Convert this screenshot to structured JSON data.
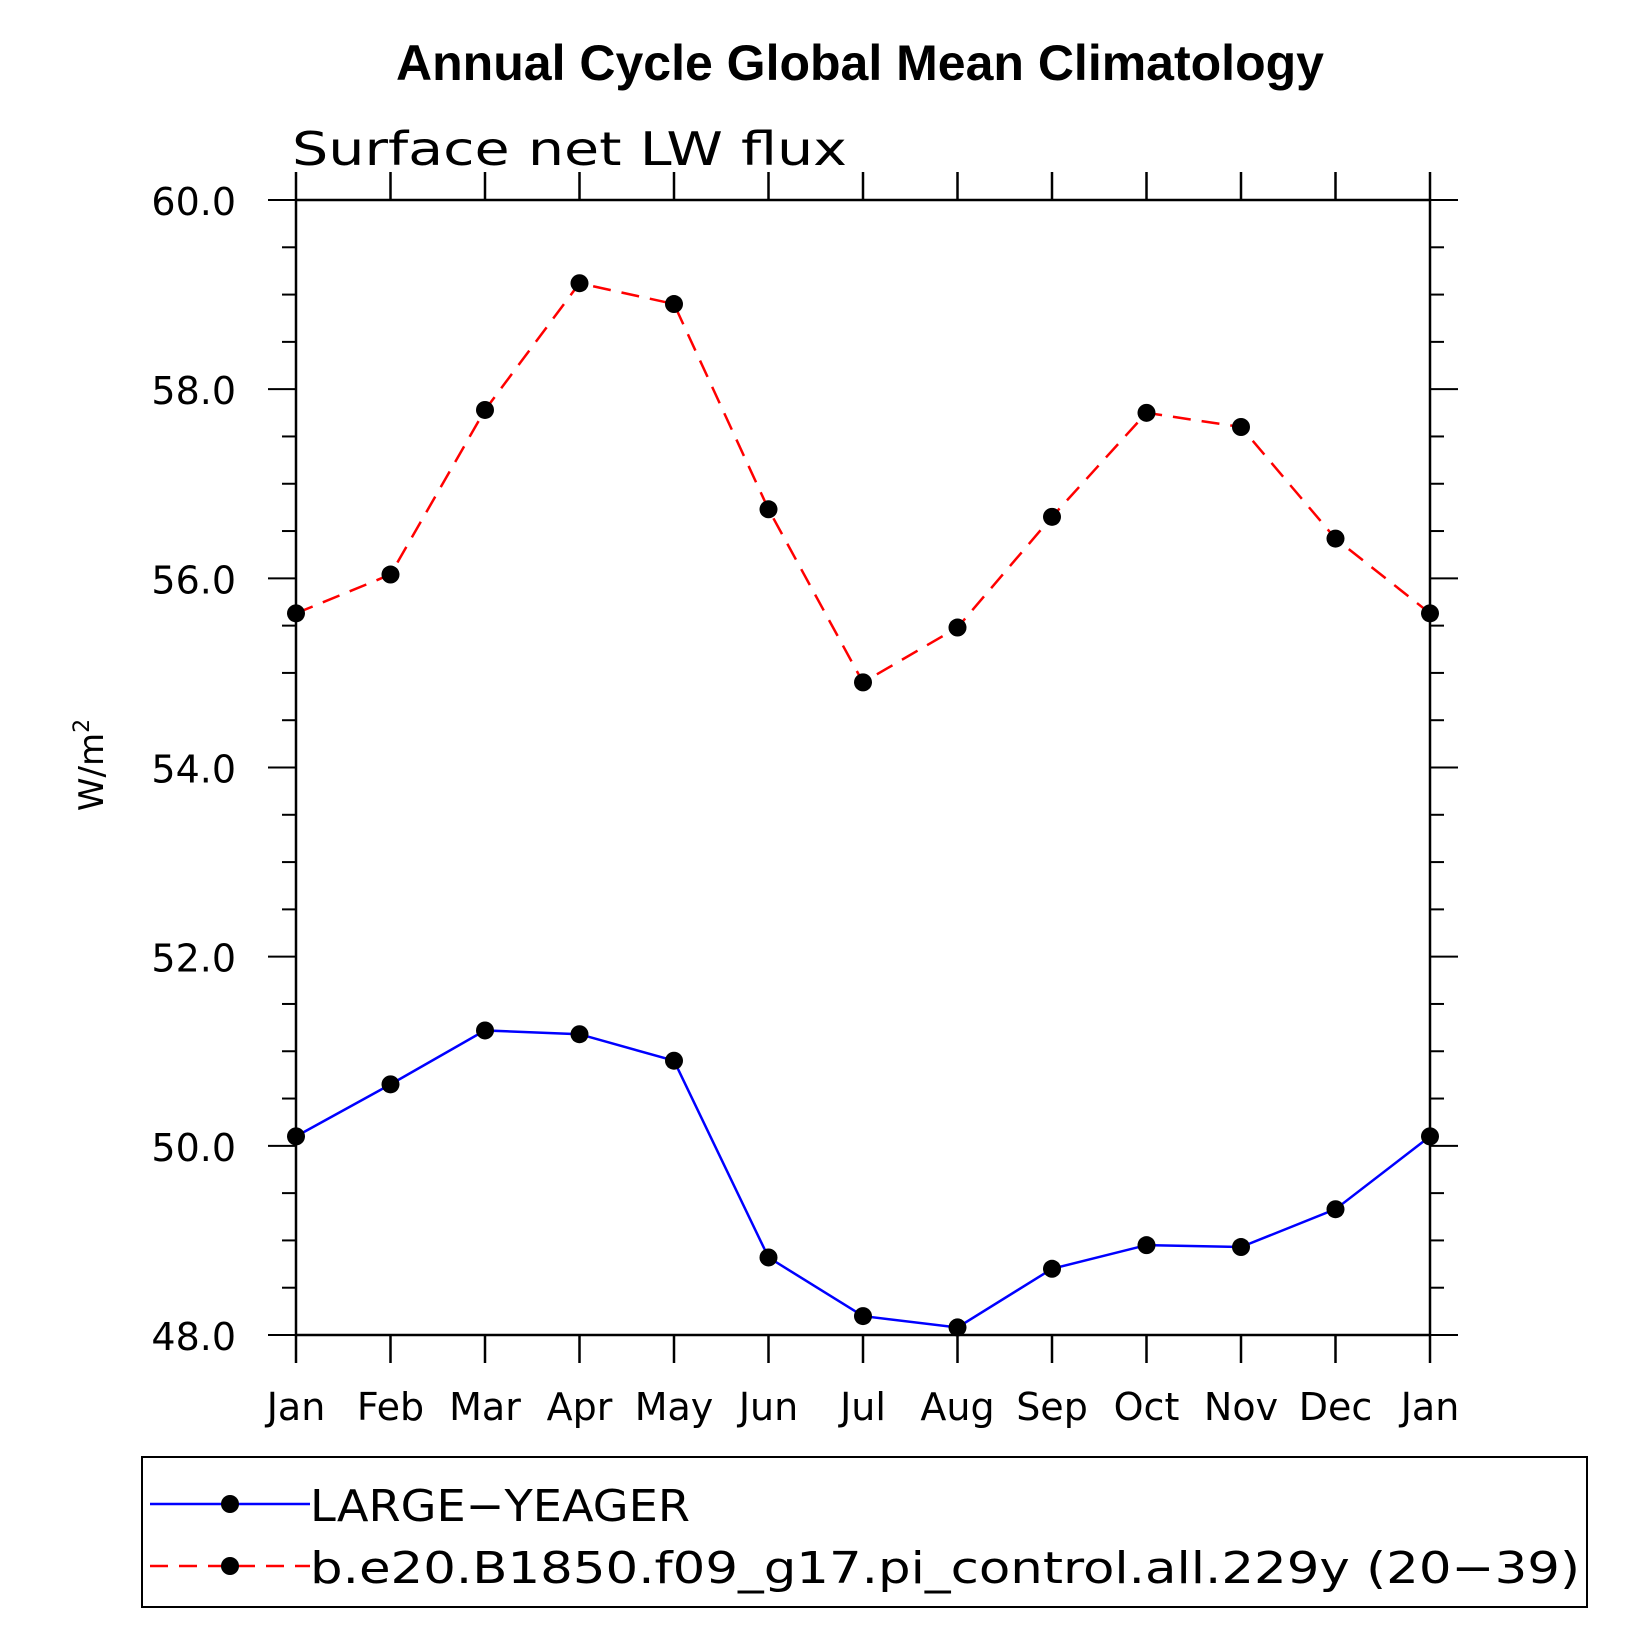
{
  "chart_data": {
    "type": "line",
    "title": "Annual Cycle Global Mean Climatology",
    "subtitle": "Surface net LW flux",
    "ylabel": "W/m",
    "ylabel_sup": "2",
    "xlabel": "",
    "ylim": [
      48.0,
      60.0
    ],
    "y_ticks": [
      "48.0",
      "50.0",
      "52.0",
      "54.0",
      "56.0",
      "58.0",
      "60.0"
    ],
    "categories": [
      "Jan",
      "Feb",
      "Mar",
      "Apr",
      "May",
      "Jun",
      "Jul",
      "Aug",
      "Sep",
      "Oct",
      "Nov",
      "Dec",
      "Jan"
    ],
    "grid": false,
    "legend_position": "bottom",
    "series": [
      {
        "name": "LARGE−YEAGER",
        "color": "#0000ff",
        "line_style": "solid",
        "marker": "filled-circle",
        "values": [
          50.1,
          50.65,
          51.22,
          51.18,
          50.9,
          48.82,
          48.2,
          48.08,
          48.7,
          48.95,
          48.93,
          49.33,
          50.1
        ]
      },
      {
        "name": "b.e20.B1850.f09_g17.pi_control.all.229y (20−39)",
        "color": "#ff0000",
        "line_style": "dashed",
        "marker": "filled-circle",
        "values": [
          55.63,
          56.04,
          57.78,
          59.12,
          58.9,
          56.73,
          54.9,
          55.48,
          56.65,
          57.75,
          57.6,
          56.42,
          55.63
        ]
      }
    ]
  }
}
